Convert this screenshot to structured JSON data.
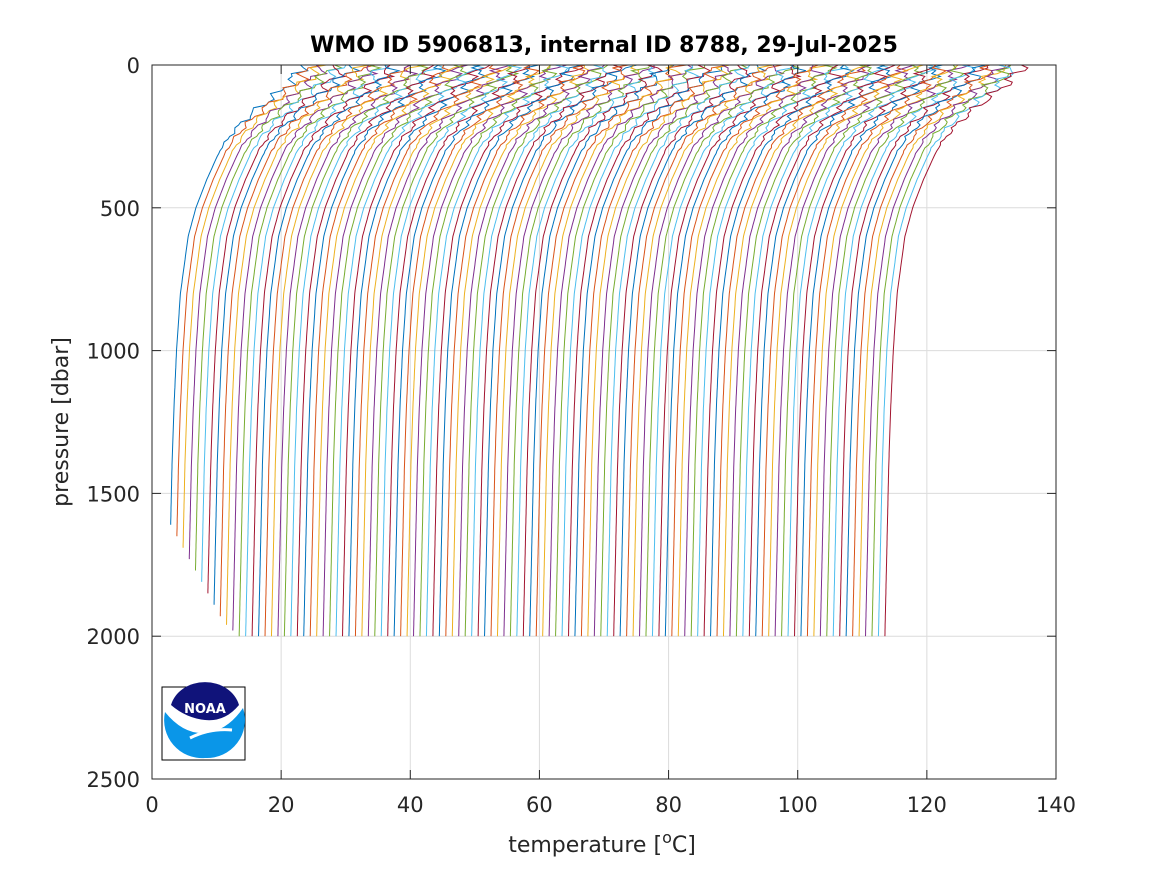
{
  "chart_data": {
    "type": "line",
    "title": "WMO ID 5906813, internal ID 8788, 29-Jul-2025",
    "xlabel": "temperature [",
    "xlabel_sup": "o",
    "xlabel_end": "C]",
    "ylabel": "pressure [dbar]",
    "xlim": [
      0,
      140
    ],
    "ylim": [
      0,
      2500
    ],
    "y_reversed": true,
    "grid": true,
    "xticks": [
      0,
      20,
      40,
      60,
      80,
      100,
      120,
      140
    ],
    "yticks": [
      0,
      500,
      1000,
      1500,
      2000,
      2500
    ],
    "xtick_labels": [
      "0",
      "20",
      "40",
      "60",
      "80",
      "100",
      "120",
      "140"
    ],
    "ytick_labels": [
      "0",
      "500",
      "1000",
      "1500",
      "2000",
      "2500"
    ],
    "profile_offset_step": 1,
    "series_count": 112,
    "series_colors": [
      "#0072bd",
      "#d95319",
      "#edb120",
      "#7e2f8e",
      "#77ac30",
      "#4dbeee",
      "#a2142f"
    ],
    "base_profile": {
      "pressure": [
        0,
        50,
        100,
        150,
        200,
        250,
        300,
        400,
        500,
        600,
        800,
        1000,
        1200,
        1400,
        1600,
        1800,
        2000
      ],
      "temperature": [
        23.0,
        22.0,
        19.5,
        16.5,
        14.0,
        12.0,
        10.5,
        8.5,
        6.8,
        5.6,
        4.4,
        3.8,
        3.4,
        3.1,
        2.9,
        2.7,
        2.5
      ]
    },
    "profile_max_pressure_first": [
      1610,
      1650,
      1690,
      1730,
      1770,
      1810,
      1850,
      1890,
      1930,
      1960,
      1980
    ]
  },
  "logo": {
    "text": "NOAA",
    "top_color": "#10137a",
    "bottom_color": "#0a96e8"
  }
}
